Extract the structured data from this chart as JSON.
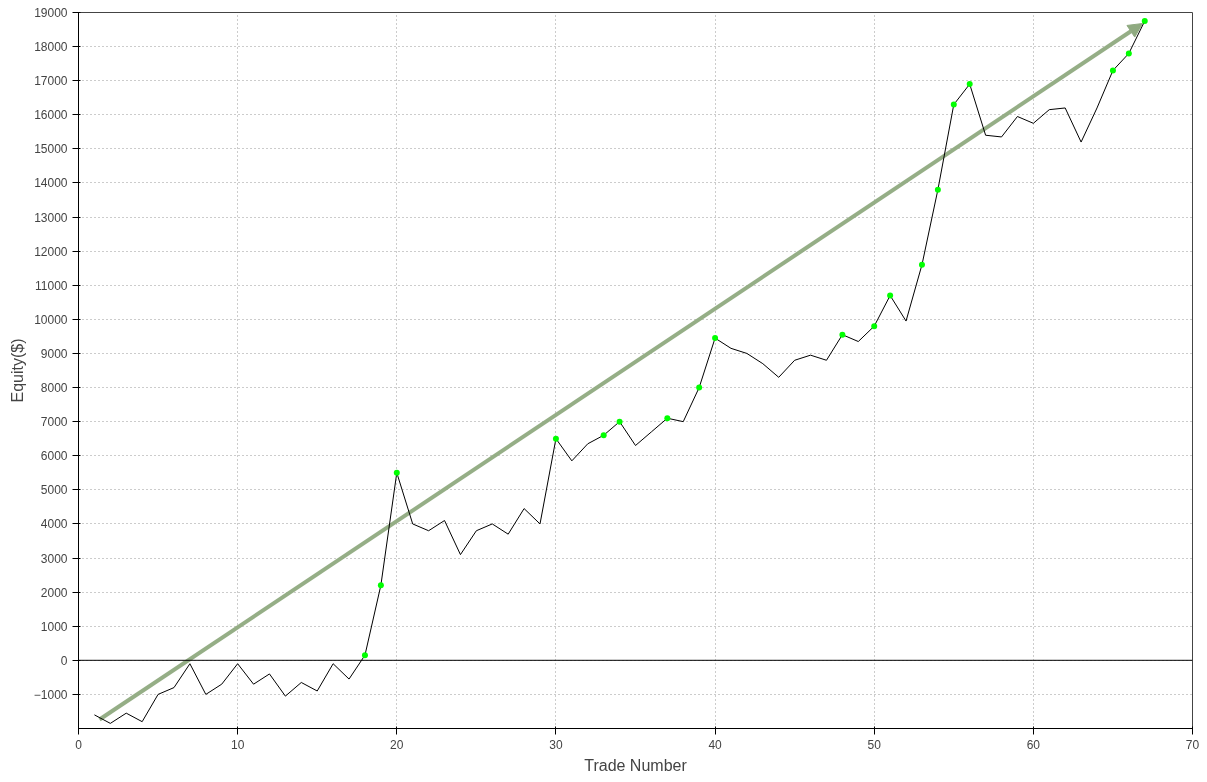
{
  "chart_data": {
    "type": "line",
    "xlabel": "Trade Number",
    "ylabel": "Equity($)",
    "xlim": [
      0,
      70
    ],
    "xticks": [
      0,
      10,
      20,
      30,
      40,
      50,
      60,
      70
    ],
    "ylim": [
      -2000,
      19000
    ],
    "yticks": [
      -1000,
      0,
      1000,
      2000,
      3000,
      4000,
      5000,
      6000,
      7000,
      8000,
      9000,
      10000,
      11000,
      12000,
      13000,
      14000,
      15000,
      16000,
      17000,
      18000,
      19000
    ],
    "grid": true,
    "marker": "none",
    "line_style": "solid",
    "ref_lines": [
      {
        "axis": "y",
        "value": 0,
        "color": "#000000"
      }
    ],
    "series": [
      {
        "color": "#000000",
        "x": [
          1,
          2,
          3,
          4,
          5,
          6,
          7,
          8,
          9,
          10,
          11,
          12,
          13,
          14,
          15,
          16,
          17,
          18,
          19,
          20,
          21,
          22,
          23,
          24,
          25,
          26,
          27,
          28,
          29,
          30,
          31,
          32,
          33,
          34,
          35,
          36,
          37,
          38,
          39,
          40,
          41,
          42,
          43,
          44,
          45,
          46,
          47,
          48,
          49,
          50,
          51,
          52,
          53,
          54,
          55,
          56,
          57,
          58,
          59,
          60,
          61,
          62,
          63,
          64,
          65,
          66,
          67
        ],
        "values": [
          -1600,
          -1850,
          -1550,
          -1800,
          -1000,
          -800,
          -100,
          -1000,
          -700,
          -100,
          -700,
          -400,
          -1050,
          -650,
          -900,
          -100,
          -550,
          150,
          2200,
          5500,
          4000,
          3800,
          4100,
          3100,
          3800,
          4000,
          3700,
          4450,
          4000,
          6500,
          5850,
          6350,
          6600,
          7000,
          6300,
          6700,
          7100,
          7000,
          8000,
          9450,
          9150,
          9000,
          8700,
          8300,
          8800,
          8950,
          8800,
          9550,
          9350,
          9800,
          10700,
          9950,
          11600,
          13800,
          16300,
          16900,
          15400,
          15350,
          15950,
          15750,
          16150,
          16200,
          15200,
          16200,
          17300,
          17800,
          18750
        ]
      },
      {
        "type": "scatter",
        "marker": "circle",
        "color": "#00ff00",
        "x": [
          18,
          19,
          20,
          30,
          33,
          34,
          37,
          39,
          40,
          48,
          50,
          51,
          53,
          54,
          55,
          56,
          65,
          66,
          67
        ],
        "values": [
          150,
          2200,
          5500,
          6500,
          6600,
          7000,
          7100,
          8000,
          9450,
          9550,
          9800,
          10700,
          11600,
          13800,
          16300,
          16900,
          17300,
          17800,
          18750
        ]
      }
    ]
  }
}
